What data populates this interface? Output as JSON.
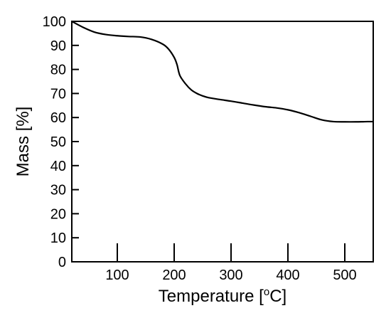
{
  "chart_data": {
    "type": "line",
    "title": "",
    "xlabel": {
      "prefix": "Temperature [",
      "superscript": "o",
      "suffix": "C]"
    },
    "ylabel": "Mass [%]",
    "xlim": [
      20,
      550
    ],
    "ylim": [
      0,
      100
    ],
    "xticks": [
      100,
      200,
      300,
      400,
      500
    ],
    "yticks": [
      0,
      10,
      20,
      30,
      40,
      50,
      60,
      70,
      80,
      90,
      100
    ],
    "grid": false,
    "line_color": "#000000",
    "series": [
      {
        "x": [
          20,
          40,
          60,
          80,
          100,
          120,
          140,
          160,
          180,
          190,
          200,
          205,
          210,
          220,
          230,
          240,
          250,
          260,
          280,
          300,
          320,
          340,
          360,
          380,
          400,
          420,
          440,
          460,
          480,
          500,
          520,
          540,
          550
        ],
        "y": [
          100,
          97.5,
          95.5,
          94.5,
          94,
          93.7,
          93.5,
          92.5,
          90.5,
          88.5,
          85,
          82,
          77.5,
          74,
          71.5,
          70,
          69,
          68.3,
          67.5,
          66.8,
          66,
          65.2,
          64.5,
          64,
          63.2,
          62,
          60.5,
          59,
          58.3,
          58.2,
          58.2,
          58.3,
          58.3
        ]
      }
    ]
  }
}
